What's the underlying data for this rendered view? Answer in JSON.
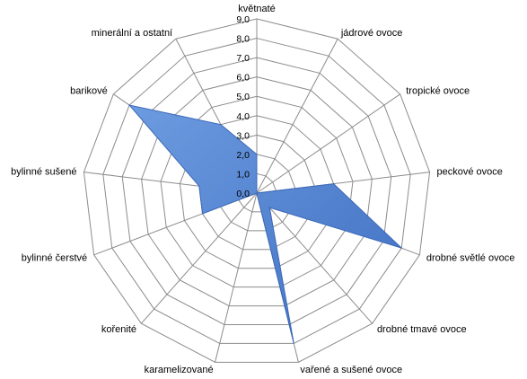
{
  "chart_data": {
    "type": "radar",
    "title": "",
    "categories": [
      "květnaté",
      "jádrové ovoce",
      "tropické ovoce",
      "peckové ovoce",
      "drobné světlé ovoce",
      "drobné tmavé ovoce",
      "vařené a sušené ovoce",
      "karamelizované",
      "kořenité",
      "bylinné čerstvé",
      "bylinné sušené",
      "barikové",
      "minerální a ostatní"
    ],
    "series": [
      {
        "values": [
          2.0,
          0.0,
          0.0,
          4.0,
          8.0,
          1.0,
          8.0,
          0.0,
          0.0,
          3.0,
          3.0,
          8.0,
          4.0
        ]
      }
    ],
    "rlim": [
      0,
      9
    ],
    "ticks": [
      "0,0",
      "1,0",
      "2,0",
      "3,0",
      "4,0",
      "5,0",
      "6,0",
      "7,0",
      "8,0",
      "9,0"
    ],
    "grid": true,
    "legend": "none",
    "fill_color": "#4f81d0",
    "stroke_color": "#3a68b8",
    "grid_color": "#8c8c8c"
  }
}
